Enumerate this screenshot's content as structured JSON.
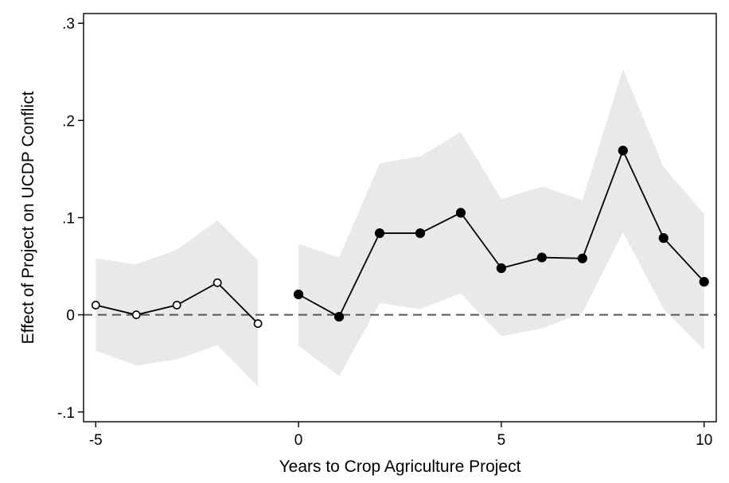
{
  "chart_data": {
    "type": "line",
    "xlabel": "Years to Crop Agriculture Project",
    "ylabel": "Effect of Project on UCDP Conflict",
    "xlim": [
      -5.3,
      10.3
    ],
    "ylim": [
      -0.11,
      0.31
    ],
    "x_ticks": [
      -5,
      0,
      5,
      10
    ],
    "x_tick_labels": [
      "-5",
      "0",
      "5",
      "10"
    ],
    "y_ticks": [
      -0.1,
      0,
      0.1,
      0.2,
      0.3
    ],
    "y_tick_labels": [
      "-.1",
      "0",
      ".1",
      ".2",
      ".3"
    ],
    "reference_line": {
      "y": 0,
      "style": "dashed"
    },
    "grid": false,
    "series": [
      {
        "marker": "hollow-circle",
        "x": [
          -5,
          -4,
          -3,
          -2,
          -1
        ],
        "y": [
          0.01,
          0.0,
          0.01,
          0.033,
          -0.009
        ],
        "ci_lower": [
          -0.037,
          -0.052,
          -0.046,
          -0.031,
          -0.074
        ],
        "ci_upper": [
          0.058,
          0.052,
          0.067,
          0.097,
          0.056
        ]
      },
      {
        "marker": "filled-circle",
        "x": [
          0,
          1,
          2,
          3,
          4,
          5,
          6,
          7,
          8,
          9,
          10
        ],
        "y": [
          0.021,
          -0.002,
          0.084,
          0.084,
          0.105,
          0.048,
          0.059,
          0.058,
          0.169,
          0.079,
          0.034
        ],
        "ci_lower": [
          -0.032,
          -0.063,
          0.012,
          0.006,
          0.022,
          -0.022,
          -0.014,
          0.002,
          0.085,
          0.006,
          -0.036
        ],
        "ci_upper": [
          0.073,
          0.059,
          0.156,
          0.163,
          0.188,
          0.119,
          0.132,
          0.118,
          0.253,
          0.152,
          0.104
        ]
      }
    ],
    "colors": {
      "line": "#000000",
      "band": "#e9e9e9",
      "reference": "#555555"
    }
  }
}
